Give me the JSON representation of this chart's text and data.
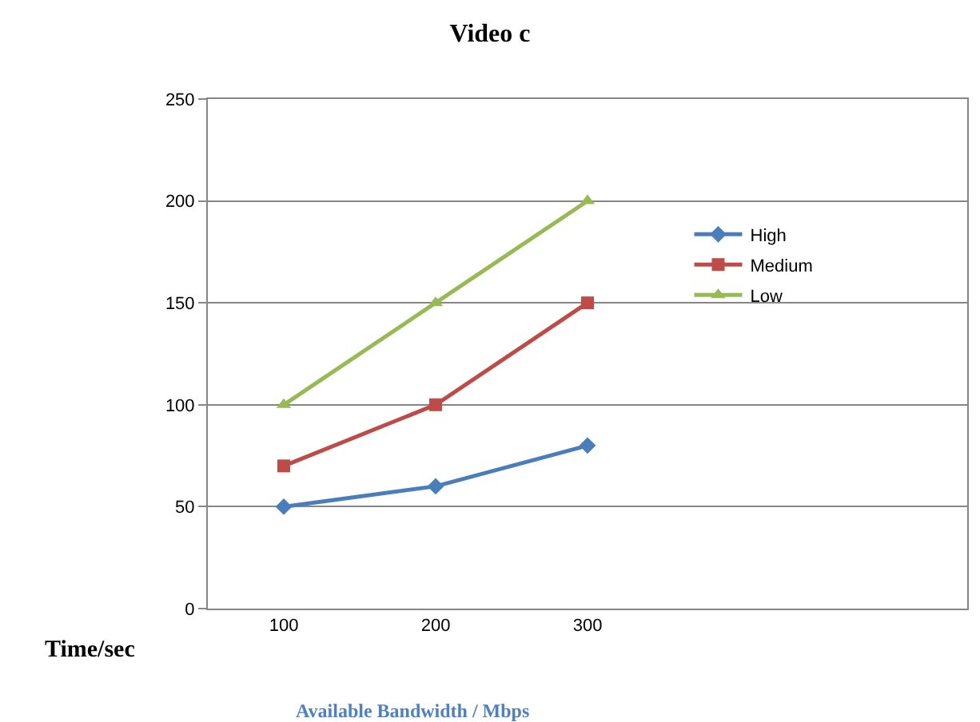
{
  "chart_data": {
    "type": "line",
    "title": "Video c",
    "xlabel": "Available Bandwidth / Mbps",
    "ylabel": "Time/sec",
    "categories": [
      "100",
      "200",
      "300",
      null,
      null
    ],
    "series": [
      {
        "name": "High",
        "color": "#4a7ebb",
        "marker": "diamond",
        "values": [
          50,
          60,
          80,
          null,
          null
        ]
      },
      {
        "name": "Medium",
        "color": "#be4b48",
        "marker": "square",
        "values": [
          70,
          100,
          150,
          null,
          null
        ]
      },
      {
        "name": "Low",
        "color": "#98b954",
        "marker": "triangle",
        "values": [
          100,
          150,
          200,
          null,
          null
        ]
      }
    ],
    "ylim": [
      0,
      250
    ],
    "yticks": [
      0,
      50,
      100,
      150,
      200,
      250
    ],
    "grid": "y",
    "legend": "right",
    "line_style": "solid"
  }
}
